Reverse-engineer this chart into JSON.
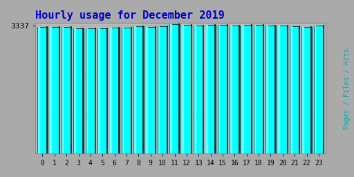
{
  "title": "Hourly usage for December 2019",
  "categories": [
    0,
    1,
    2,
    3,
    4,
    5,
    6,
    7,
    8,
    9,
    10,
    11,
    12,
    13,
    14,
    15,
    16,
    17,
    18,
    19,
    20,
    21,
    22,
    23
  ],
  "values": [
    3310,
    3310,
    3295,
    3270,
    3275,
    3272,
    3285,
    3285,
    3315,
    3308,
    3328,
    3370,
    3363,
    3348,
    3355,
    3350,
    3348,
    3358,
    3360,
    3345,
    3342,
    3330,
    3305,
    3348
  ],
  "bar_color": "#00FFFF",
  "bar_left_color": "#66FFFF",
  "bar_dark_color": "#004040",
  "background_color": "#AAAAAA",
  "plot_bg_color": "#BBBBBB",
  "title_color": "#0000CC",
  "ylabel": "Pages / Files / Hits",
  "ylabel_color": "#00AAAA",
  "ytick_label": "3337",
  "ytick_value": 3337,
  "ylim_min": 0,
  "ylim_max": 3420,
  "title_fontsize": 11,
  "axis_fontsize": 8
}
